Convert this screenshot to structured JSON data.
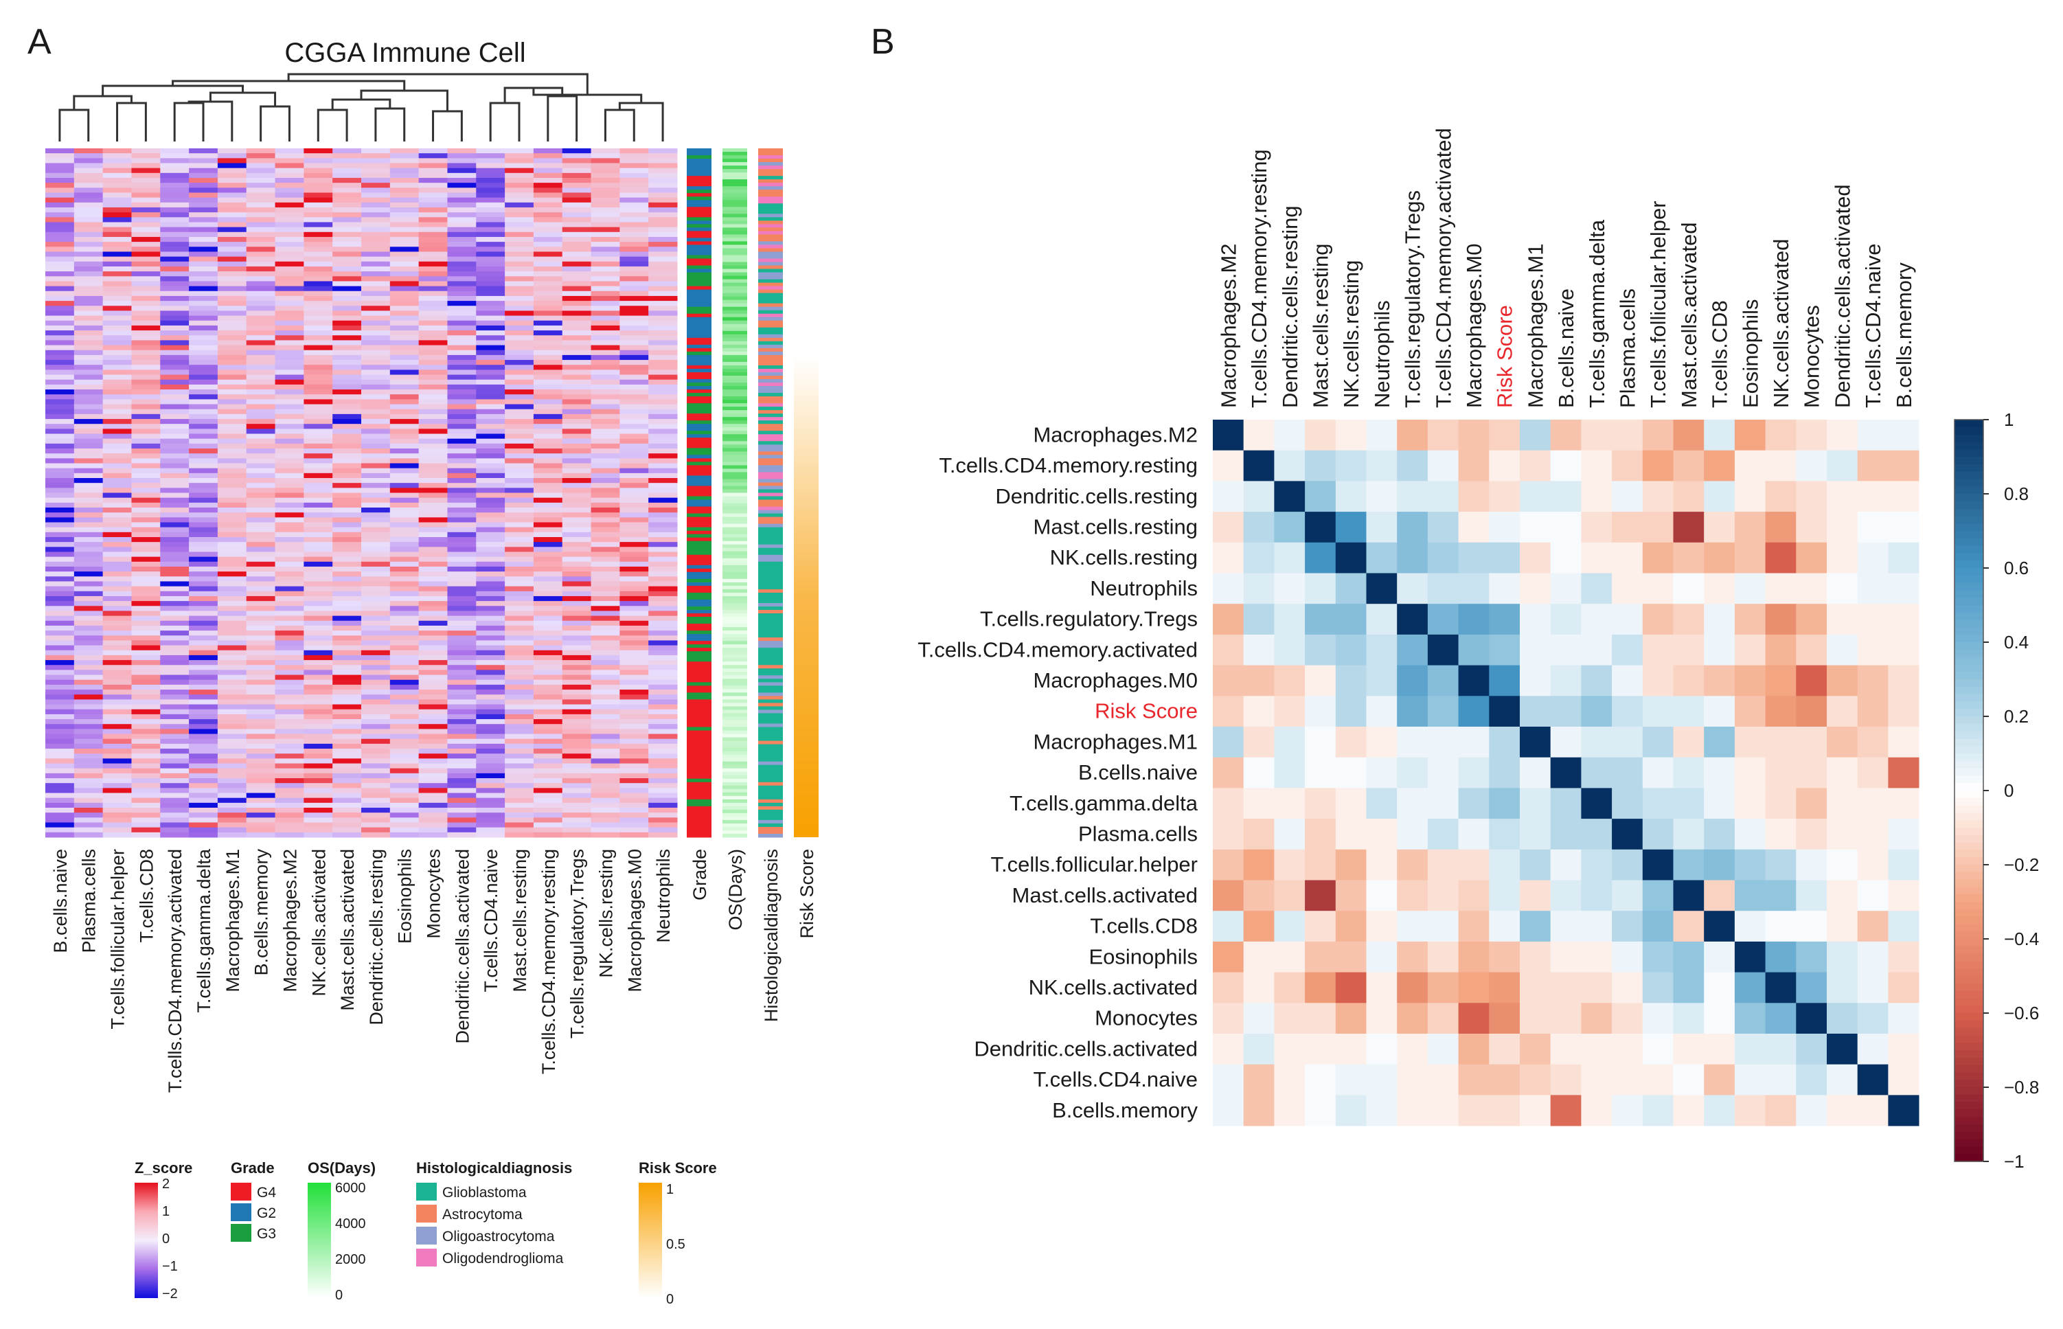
{
  "panel_a": {
    "label": "A",
    "title": "CGGA Immune Cell",
    "columns": [
      "B.cells.naive",
      "Plasma.cells",
      "T.cells.follicular.helper",
      "T.cells.CD8",
      "T.cells.CD4.memory.activated",
      "T.cells.gamma.delta",
      "Macrophages.M1",
      "B.cells.memory",
      "Macrophages.M2",
      "NK.cells.activated",
      "Mast.cells.activated",
      "Dendritic.cells.resting",
      "Eosinophils",
      "Monocytes",
      "Dendritic.cells.activated",
      "T.cells.CD4.naive",
      "Mast.cells.resting",
      "T.cells.CD4.memory.resting",
      "T.cells.regulatory.Tregs",
      "NK.cells.resting",
      "Macrophages.M0",
      "Neutrophils"
    ],
    "annotations": [
      "Grade",
      "OS(Days)",
      "Histologicaldiagnosis",
      "Risk Score"
    ]
  },
  "panel_b": {
    "label": "B",
    "risk_label": "Risk Score",
    "risk_color": "#e8262b",
    "variables": [
      "Macrophages.M2",
      "T.cells.CD4.memory.resting",
      "Dendritic.cells.resting",
      "Mast.cells.resting",
      "NK.cells.resting",
      "Neutrophils",
      "T.cells.regulatory.Tregs",
      "T.cells.CD4.memory.activated",
      "Macrophages.M0",
      "Risk Score",
      "Macrophages.M1",
      "B.cells.naive",
      "T.cells.gamma.delta",
      "Plasma.cells",
      "T.cells.follicular.helper",
      "Mast.cells.activated",
      "T.cells.CD8",
      "Eosinophils",
      "NK.cells.activated",
      "Monocytes",
      "Dendritic.cells.activated",
      "T.cells.CD4.naive",
      "B.cells.memory"
    ],
    "colorbar_ticks": [
      "1",
      "0.8",
      "0.6",
      "0.4",
      "0.2",
      "0",
      "−0.2",
      "−0.4",
      "−0.6",
      "−0.8",
      "−1"
    ]
  },
  "legend": {
    "zscore": {
      "title": "Z_score",
      "ticks": [
        "2",
        "1",
        "0",
        "−1",
        "−2"
      ]
    },
    "grade": {
      "title": "Grade",
      "items": [
        {
          "label": "G4",
          "color": "#ee1c25"
        },
        {
          "label": "G2",
          "color": "#1f78b4"
        },
        {
          "label": "G3",
          "color": "#1a9e3f"
        }
      ]
    },
    "os": {
      "title": "OS(Days)",
      "ticks": [
        "6000",
        "4000",
        "2000",
        "0"
      ]
    },
    "histo": {
      "title": "Histologicaldiagnosis",
      "items": [
        {
          "label": "Glioblastoma",
          "color": "#1ab394"
        },
        {
          "label": "Astrocytoma",
          "color": "#f4845f"
        },
        {
          "label": "Oligoastrocytoma",
          "color": "#8e9fd1"
        },
        {
          "label": "Oligodendroglioma",
          "color": "#f07cbf"
        }
      ]
    },
    "risk": {
      "title": "Risk Score",
      "ticks": [
        "1",
        "0.5",
        "0"
      ]
    }
  },
  "chart_data": [
    {
      "type": "heatmap",
      "title": "CGGA Immune Cell",
      "x": [
        "B.cells.naive",
        "Plasma.cells",
        "T.cells.follicular.helper",
        "T.cells.CD8",
        "T.cells.CD4.memory.activated",
        "T.cells.gamma.delta",
        "Macrophages.M1",
        "B.cells.memory",
        "Macrophages.M2",
        "NK.cells.activated",
        "Mast.cells.activated",
        "Dendritic.cells.resting",
        "Eosinophils",
        "Monocytes",
        "Dendritic.cells.activated",
        "T.cells.CD4.naive",
        "Mast.cells.resting",
        "T.cells.CD4.memory.resting",
        "T.cells.regulatory.Tregs",
        "NK.cells.resting",
        "Macrophages.M0",
        "Neutrophils"
      ],
      "color_scale": "Z_score",
      "zlim": [
        -2,
        2
      ],
      "annotation_tracks": [
        "Grade",
        "OS(Days)",
        "Histologicaldiagnosis",
        "Risk Score"
      ]
    },
    {
      "type": "heatmap",
      "title": "",
      "x": [
        "Macrophages.M2",
        "T.cells.CD4.memory.resting",
        "Dendritic.cells.resting",
        "Mast.cells.resting",
        "NK.cells.resting",
        "Neutrophils",
        "T.cells.regulatory.Tregs",
        "T.cells.CD4.memory.activated",
        "Macrophages.M0",
        "Risk Score",
        "Macrophages.M1",
        "B.cells.naive",
        "T.cells.gamma.delta",
        "Plasma.cells",
        "T.cells.follicular.helper",
        "Mast.cells.activated",
        "T.cells.CD8",
        "Eosinophils",
        "NK.cells.activated",
        "Monocytes",
        "Dendritic.cells.activated",
        "T.cells.CD4.naive",
        "B.cells.memory"
      ],
      "y": [
        "Macrophages.M2",
        "T.cells.CD4.memory.resting",
        "Dendritic.cells.resting",
        "Mast.cells.resting",
        "NK.cells.resting",
        "Neutrophils",
        "T.cells.regulatory.Tregs",
        "T.cells.CD4.memory.activated",
        "Macrophages.M0",
        "Risk Score",
        "Macrophages.M1",
        "B.cells.naive",
        "T.cells.gamma.delta",
        "Plasma.cells",
        "T.cells.follicular.helper",
        "Mast.cells.activated",
        "T.cells.CD8",
        "Eosinophils",
        "NK.cells.activated",
        "Monocytes",
        "Dendritic.cells.activated",
        "T.cells.CD4.naive",
        "B.cells.memory"
      ],
      "zlim": [
        -1,
        1
      ],
      "values": [
        [
          1,
          -0.05,
          0.05,
          -0.1,
          -0.05,
          0.05,
          -0.25,
          -0.15,
          -0.2,
          -0.15,
          0.2,
          -0.2,
          -0.1,
          -0.1,
          -0.2,
          -0.35,
          0.1,
          -0.3,
          -0.15,
          -0.1,
          -0.05,
          0.05,
          0.05
        ],
        [
          -0.05,
          1,
          0.1,
          0.2,
          0.15,
          0.1,
          0.2,
          0.05,
          -0.2,
          -0.05,
          -0.1,
          0.02,
          -0.05,
          -0.15,
          -0.3,
          -0.2,
          -0.3,
          -0.05,
          -0.05,
          0.05,
          0.1,
          -0.2,
          -0.2
        ],
        [
          0.05,
          0.1,
          1,
          0.3,
          0.1,
          0.05,
          0.1,
          0.1,
          -0.15,
          -0.1,
          0.1,
          0.1,
          -0.05,
          0.05,
          -0.1,
          -0.15,
          0.1,
          -0.05,
          -0.15,
          -0.1,
          -0.05,
          -0.05,
          -0.05
        ],
        [
          -0.1,
          0.2,
          0.3,
          1,
          0.6,
          0.1,
          0.35,
          0.2,
          -0.05,
          0.05,
          0.02,
          0.02,
          -0.1,
          -0.15,
          -0.15,
          -0.75,
          -0.1,
          -0.2,
          -0.35,
          -0.1,
          -0.05,
          0.02,
          0.02
        ],
        [
          -0.05,
          0.15,
          0.1,
          0.6,
          1,
          0.25,
          0.35,
          0.25,
          0.2,
          0.2,
          -0.1,
          0.02,
          -0.05,
          -0.05,
          -0.25,
          -0.2,
          -0.25,
          -0.2,
          -0.6,
          -0.25,
          -0.05,
          0.05,
          0.1
        ],
        [
          0.05,
          0.1,
          0.05,
          0.1,
          0.25,
          1,
          0.1,
          0.15,
          0.15,
          0.05,
          -0.05,
          0.05,
          0.15,
          -0.05,
          -0.05,
          0.02,
          -0.05,
          0.05,
          -0.05,
          -0.05,
          0.02,
          0.05,
          0.05
        ],
        [
          -0.25,
          0.2,
          0.1,
          0.35,
          0.35,
          0.1,
          1,
          0.4,
          0.5,
          0.45,
          0.05,
          0.1,
          0.05,
          0.05,
          -0.2,
          -0.15,
          0.05,
          -0.2,
          -0.4,
          -0.25,
          -0.05,
          -0.05,
          -0.05
        ],
        [
          -0.15,
          0.05,
          0.1,
          0.2,
          0.25,
          0.15,
          0.4,
          1,
          0.35,
          0.3,
          0.05,
          0.05,
          0.05,
          0.15,
          -0.1,
          -0.1,
          0.05,
          -0.1,
          -0.25,
          -0.15,
          0.05,
          -0.05,
          -0.05
        ],
        [
          -0.2,
          -0.2,
          -0.15,
          -0.05,
          0.2,
          0.15,
          0.5,
          0.35,
          1,
          0.6,
          0.05,
          0.1,
          0.2,
          0.05,
          -0.1,
          -0.15,
          -0.2,
          -0.25,
          -0.3,
          -0.6,
          -0.25,
          -0.2,
          -0.1
        ],
        [
          -0.15,
          -0.05,
          -0.1,
          0.05,
          0.2,
          0.05,
          0.45,
          0.3,
          0.6,
          1,
          0.2,
          0.2,
          0.3,
          0.15,
          0.1,
          0.1,
          0.05,
          -0.2,
          -0.35,
          -0.4,
          -0.1,
          -0.2,
          -0.1
        ],
        [
          0.2,
          -0.1,
          0.1,
          0.02,
          -0.1,
          -0.05,
          0.05,
          0.05,
          0.05,
          0.2,
          1,
          0.05,
          0.1,
          0.1,
          0.2,
          -0.1,
          0.3,
          -0.1,
          -0.1,
          -0.1,
          -0.2,
          -0.15,
          -0.05
        ],
        [
          -0.2,
          0.02,
          0.1,
          0.02,
          0.02,
          0.05,
          0.1,
          0.05,
          0.1,
          0.2,
          0.05,
          1,
          0.2,
          0.2,
          0.05,
          0.1,
          0.05,
          -0.05,
          -0.1,
          -0.1,
          -0.05,
          -0.1,
          -0.55
        ],
        [
          -0.1,
          -0.05,
          -0.05,
          -0.1,
          -0.05,
          0.15,
          0.05,
          0.05,
          0.2,
          0.3,
          0.1,
          0.2,
          1,
          0.2,
          0.15,
          0.15,
          0.05,
          -0.05,
          -0.1,
          -0.2,
          -0.05,
          -0.05,
          -0.05
        ],
        [
          -0.1,
          -0.15,
          0.05,
          -0.15,
          -0.05,
          -0.05,
          0.05,
          0.15,
          0.05,
          0.15,
          0.1,
          0.2,
          0.2,
          1,
          0.2,
          0.1,
          0.2,
          0.05,
          -0.05,
          -0.1,
          -0.05,
          -0.05,
          0.05
        ],
        [
          -0.2,
          -0.3,
          -0.1,
          -0.15,
          -0.25,
          -0.05,
          -0.2,
          -0.1,
          -0.1,
          0.1,
          0.2,
          0.05,
          0.15,
          0.2,
          1,
          0.3,
          0.35,
          0.25,
          0.2,
          0.05,
          0.02,
          -0.05,
          0.1
        ],
        [
          -0.35,
          -0.2,
          -0.15,
          -0.75,
          -0.2,
          0.02,
          -0.15,
          -0.1,
          -0.15,
          0.1,
          -0.1,
          0.1,
          0.15,
          0.1,
          0.3,
          1,
          -0.15,
          0.3,
          0.3,
          0.1,
          -0.05,
          0.02,
          -0.05
        ],
        [
          0.1,
          -0.3,
          0.1,
          -0.1,
          -0.25,
          -0.05,
          0.05,
          0.05,
          -0.2,
          0.05,
          0.3,
          0.05,
          0.05,
          0.2,
          0.35,
          -0.15,
          1,
          0.05,
          0.02,
          0.02,
          -0.05,
          -0.2,
          0.1
        ],
        [
          -0.3,
          -0.05,
          -0.05,
          -0.2,
          -0.2,
          0.05,
          -0.2,
          -0.1,
          -0.25,
          -0.2,
          -0.1,
          -0.05,
          -0.05,
          0.05,
          0.25,
          0.3,
          0.05,
          1,
          0.45,
          0.3,
          0.1,
          0.05,
          -0.1
        ],
        [
          -0.15,
          -0.05,
          -0.15,
          -0.35,
          -0.6,
          -0.05,
          -0.4,
          -0.25,
          -0.3,
          -0.35,
          -0.1,
          -0.1,
          -0.1,
          -0.05,
          0.2,
          0.3,
          0.02,
          0.45,
          1,
          0.4,
          0.1,
          0.05,
          -0.15
        ],
        [
          -0.1,
          0.05,
          -0.1,
          -0.1,
          -0.25,
          -0.05,
          -0.25,
          -0.15,
          -0.6,
          -0.4,
          -0.1,
          -0.1,
          -0.2,
          -0.1,
          0.05,
          0.1,
          0.02,
          0.3,
          0.4,
          1,
          0.2,
          0.15,
          0.05
        ],
        [
          -0.05,
          0.1,
          -0.05,
          -0.05,
          -0.05,
          0.02,
          -0.05,
          0.05,
          -0.25,
          -0.1,
          -0.2,
          -0.05,
          -0.05,
          -0.05,
          0.02,
          -0.05,
          -0.05,
          0.1,
          0.1,
          0.2,
          1,
          0.05,
          -0.05
        ],
        [
          0.05,
          -0.2,
          -0.05,
          0.02,
          0.05,
          0.05,
          -0.05,
          -0.05,
          -0.2,
          -0.2,
          -0.15,
          -0.1,
          -0.05,
          -0.05,
          -0.05,
          0.02,
          -0.2,
          0.05,
          0.05,
          0.15,
          0.05,
          1,
          -0.05
        ],
        [
          0.05,
          -0.2,
          -0.05,
          0.02,
          0.1,
          0.05,
          -0.05,
          -0.05,
          -0.1,
          -0.1,
          -0.05,
          -0.55,
          -0.05,
          0.05,
          0.1,
          -0.05,
          0.1,
          -0.1,
          -0.15,
          0.05,
          -0.05,
          -0.05,
          1
        ]
      ]
    }
  ]
}
